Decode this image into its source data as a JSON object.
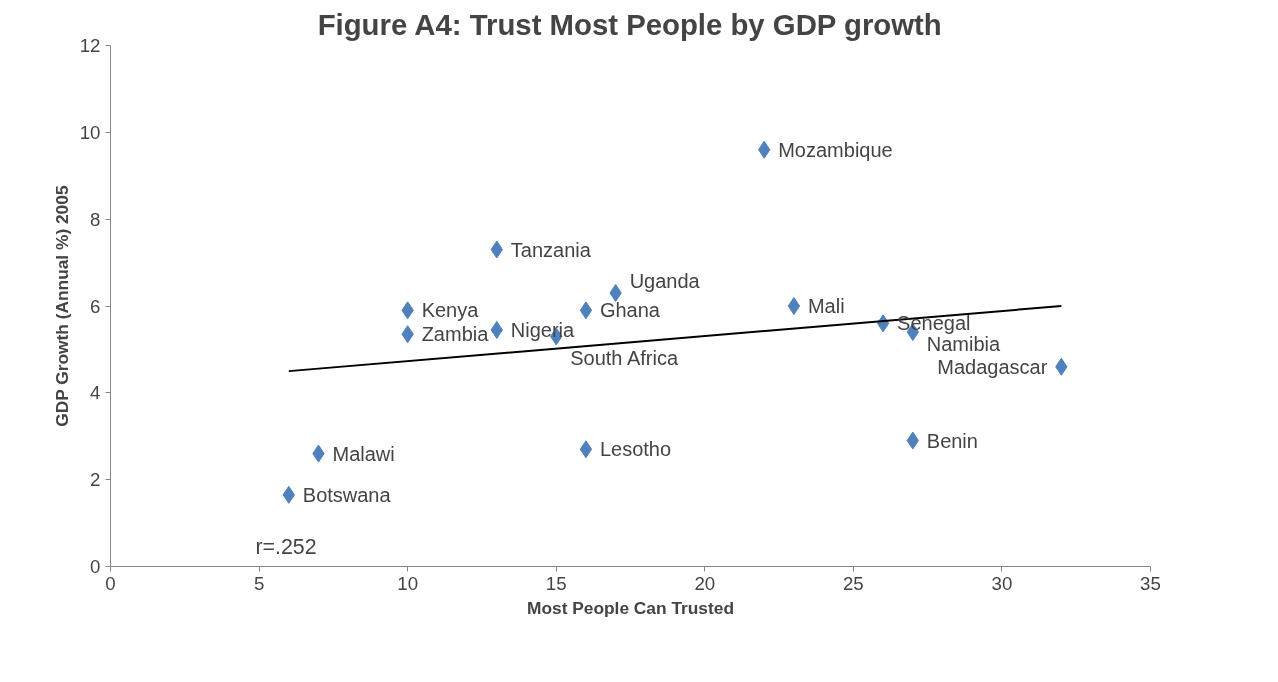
{
  "chart_data": {
    "type": "scatter",
    "title": "Figure A4: Trust Most People by GDP growth",
    "xlabel": "Most People Can Trusted",
    "ylabel": "GDP Growth (Annual %) 2005",
    "xlim": [
      0,
      35
    ],
    "xticks": [
      0,
      5,
      10,
      15,
      20,
      25,
      30,
      35
    ],
    "ylim": [
      0,
      12
    ],
    "yticks": [
      0,
      2,
      4,
      6,
      8,
      10,
      12
    ],
    "grid": false,
    "series": [
      {
        "marker": "diamond",
        "color": "#4f81bd",
        "x": [
          6,
          7,
          10,
          10,
          13,
          13,
          15,
          16,
          16,
          17,
          22,
          23,
          26,
          27,
          27,
          32
        ],
        "values": [
          1.65,
          2.6,
          5.9,
          5.35,
          7.3,
          5.45,
          5.3,
          5.9,
          2.7,
          6.3,
          9.6,
          6.0,
          5.6,
          5.4,
          2.9,
          4.6
        ]
      },
      {
        "type": "line",
        "color": "#000000",
        "x": [
          6,
          32
        ],
        "values": [
          4.5,
          6.0
        ],
        "line_style": "solid"
      }
    ],
    "annotations": [
      {
        "text": "Botswana",
        "x": 6,
        "y": 1.65
      },
      {
        "text": "Malawi",
        "x": 7,
        "y": 2.6
      },
      {
        "text": "Kenya",
        "x": 10,
        "y": 5.9
      },
      {
        "text": "Zambia",
        "x": 10,
        "y": 5.35
      },
      {
        "text": "Tanzania",
        "x": 13,
        "y": 7.3
      },
      {
        "text": "Nigeria",
        "x": 13,
        "y": 5.45
      },
      {
        "text": "South Africa",
        "x": 15,
        "y": 5.3
      },
      {
        "text": "Ghana",
        "x": 16,
        "y": 5.9
      },
      {
        "text": "Lesotho",
        "x": 16,
        "y": 2.7
      },
      {
        "text": "Uganda",
        "x": 17,
        "y": 6.3
      },
      {
        "text": "Mozambique",
        "x": 22,
        "y": 9.6
      },
      {
        "text": "Mali",
        "x": 23,
        "y": 6.0
      },
      {
        "text": "Senegal",
        "x": 26,
        "y": 5.6
      },
      {
        "text": "Namibia",
        "x": 27,
        "y": 5.4
      },
      {
        "text": "Benin",
        "x": 27,
        "y": 2.9
      },
      {
        "text": "Madagascar",
        "x": 32,
        "y": 4.6
      },
      "r=.252"
    ]
  }
}
